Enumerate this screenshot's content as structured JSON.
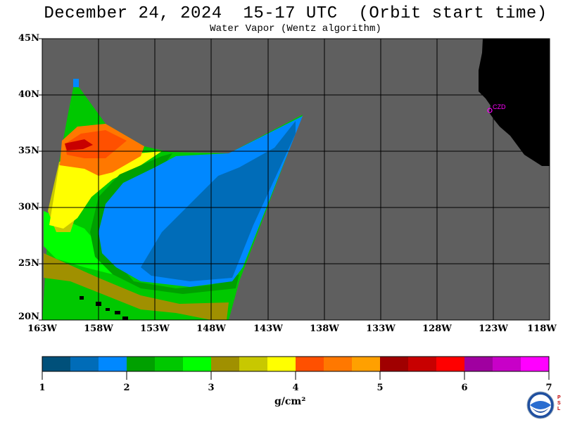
{
  "title": "December 24, 2024  15-17 UTC  (Orbit start time)",
  "subtitle": "Water Vapor (Wentz algorithm)",
  "lat_labels": [
    "45N",
    "40N",
    "35N",
    "30N",
    "25N",
    "20N"
  ],
  "lon_labels": [
    "163W",
    "158W",
    "153W",
    "148W",
    "143W",
    "138W",
    "133W",
    "128W",
    "123W",
    "118W"
  ],
  "city_label": "CZD",
  "colorbar": {
    "colors": [
      "#00507a",
      "#006cb8",
      "#0088ff",
      "#00a000",
      "#00c800",
      "#00ff00",
      "#a09000",
      "#c8c800",
      "#ffff00",
      "#ff5000",
      "#ff7800",
      "#ffa000",
      "#a00000",
      "#c80000",
      "#ff0000",
      "#a000a0",
      "#c800c8",
      "#ff00ff"
    ],
    "ticks": [
      "1",
      "2",
      "3",
      "4",
      "5",
      "6",
      "7"
    ],
    "unit": "g/cm²"
  },
  "colors": {
    "nodata": "#5f5f5f",
    "land": "#000000",
    "grid": "#000000",
    "accent_city": "#ff00ff"
  },
  "logo": {
    "name": "NOAA",
    "side_text": "PSL"
  }
}
